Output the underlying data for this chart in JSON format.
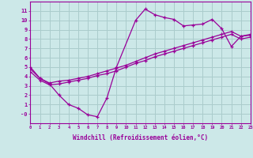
{
  "background_color": "#cce8e8",
  "grid_color": "#aacccc",
  "line_color": "#990099",
  "line1_x": [
    0,
    1,
    2,
    3,
    4,
    5,
    6,
    7,
    8,
    9,
    11,
    12,
    13,
    14,
    15,
    16,
    17,
    18,
    19,
    20,
    21,
    22,
    23
  ],
  "line1_y": [
    5.0,
    3.8,
    3.2,
    2.0,
    1.0,
    0.6,
    -0.1,
    -0.3,
    1.7,
    5.0,
    10.0,
    11.2,
    10.6,
    10.3,
    10.1,
    9.4,
    9.5,
    9.6,
    10.1,
    9.1,
    7.2,
    8.3,
    8.4
  ],
  "line2_x": [
    0,
    1,
    2,
    3,
    4,
    5,
    6,
    7,
    8,
    9,
    10,
    11,
    12,
    13,
    14,
    15,
    16,
    17,
    18,
    19,
    20,
    21,
    22,
    23
  ],
  "line2_y": [
    4.8,
    3.8,
    3.3,
    3.5,
    3.6,
    3.8,
    4.0,
    4.3,
    4.6,
    4.9,
    5.2,
    5.6,
    6.0,
    6.4,
    6.7,
    7.0,
    7.3,
    7.6,
    7.9,
    8.2,
    8.5,
    8.8,
    8.3,
    8.5
  ],
  "line3_x": [
    0,
    1,
    2,
    3,
    4,
    5,
    6,
    7,
    8,
    9,
    10,
    11,
    12,
    13,
    14,
    15,
    16,
    17,
    18,
    19,
    20,
    21,
    22,
    23
  ],
  "line3_y": [
    4.5,
    3.6,
    3.1,
    3.2,
    3.4,
    3.6,
    3.8,
    4.1,
    4.3,
    4.6,
    5.0,
    5.4,
    5.7,
    6.1,
    6.4,
    6.7,
    7.0,
    7.3,
    7.6,
    7.9,
    8.2,
    8.5,
    8.0,
    8.2
  ],
  "xlabel": "Windchill (Refroidissement éolien,°C)",
  "ylim": [
    -1,
    12
  ],
  "xlim": [
    0,
    23
  ],
  "yticks": [
    0,
    1,
    2,
    3,
    4,
    5,
    6,
    7,
    8,
    9,
    10,
    11
  ],
  "xticks": [
    0,
    1,
    2,
    3,
    4,
    5,
    6,
    7,
    8,
    9,
    10,
    11,
    12,
    13,
    14,
    15,
    16,
    17,
    18,
    19,
    20,
    21,
    22,
    23
  ]
}
